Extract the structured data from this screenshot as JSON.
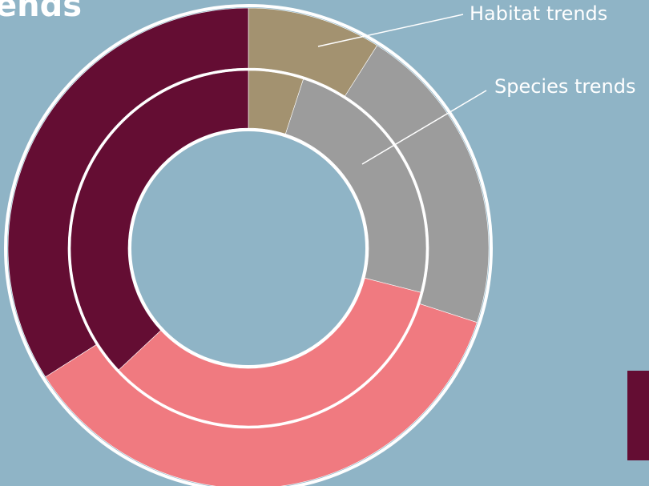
{
  "title": "ends",
  "colors": {
    "background": "#8fb4c6",
    "habitat": "#a39270",
    "species": "#9c9c9c",
    "pink": "#f07a80",
    "maroon": "#640d33",
    "divider": "#ffffff"
  },
  "chart_data": {
    "type": "pie",
    "variant": "nested-donut",
    "title": "",
    "callouts": [
      "Habitat trends",
      "Species trends"
    ],
    "categories": [
      "Habitat trends",
      "Species trends",
      "",
      ""
    ],
    "series": [
      {
        "ring": "outer",
        "values": [
          9,
          21,
          36,
          34
        ]
      },
      {
        "ring": "inner",
        "values": [
          5,
          24,
          34,
          37
        ]
      }
    ]
  },
  "legend": {
    "swatch_color": "#640d33"
  }
}
